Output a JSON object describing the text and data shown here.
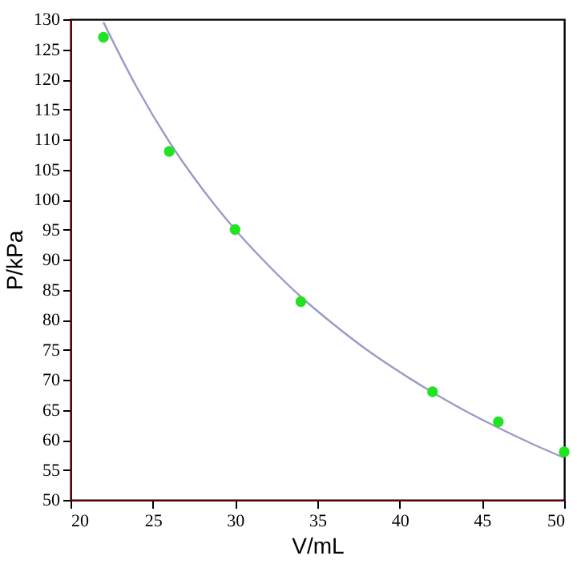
{
  "chart_data": {
    "type": "scatter",
    "xlabel": "V/mL",
    "ylabel": "P/kPa",
    "xlim": [
      20,
      50
    ],
    "ylim": [
      50,
      130
    ],
    "xticks": [
      20,
      25,
      30,
      35,
      40,
      45,
      50
    ],
    "yticks": [
      50,
      55,
      60,
      65,
      70,
      75,
      80,
      85,
      90,
      95,
      100,
      105,
      110,
      115,
      120,
      125,
      130
    ],
    "grid": false,
    "series": [
      {
        "color": "#22e322",
        "marker": "circle",
        "x": [
          22,
          26,
          30,
          34,
          42,
          46,
          50
        ],
        "values": [
          127,
          108,
          95,
          83,
          68,
          63,
          58
        ]
      },
      {
        "type": "line",
        "color": "#9a9ac8",
        "marker": "none",
        "x": [
          22,
          24,
          26,
          28,
          30,
          32,
          34,
          36,
          38,
          40,
          42,
          44,
          46,
          48,
          50
        ],
        "values": [
          129.5,
          118.8,
          109.6,
          101.8,
          95,
          89.1,
          83.8,
          79.2,
          75,
          71.3,
          67.9,
          64.8,
          62,
          59.4,
          57
        ]
      }
    ]
  }
}
